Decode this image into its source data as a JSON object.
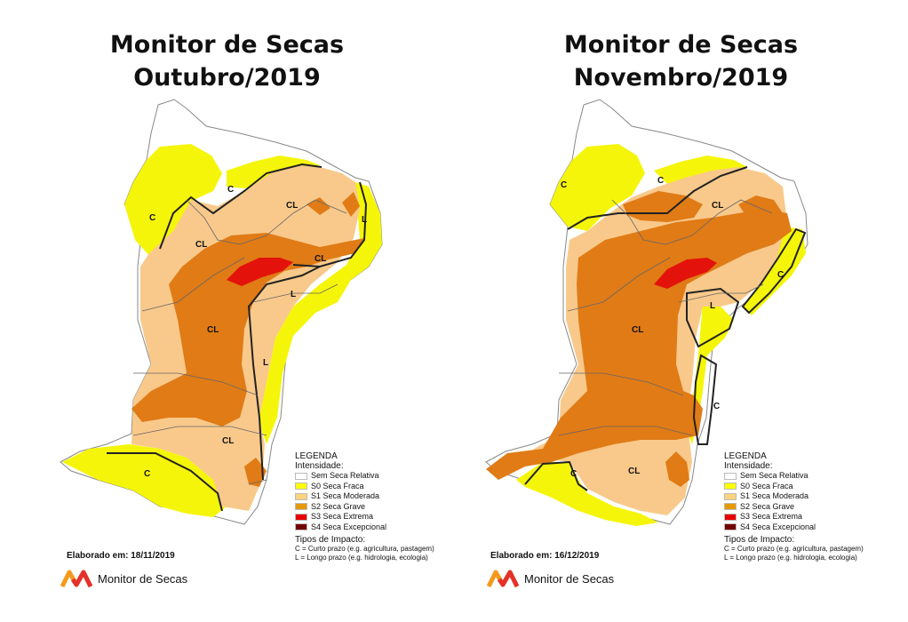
{
  "panels": [
    {
      "title_line1": "Monitor de Secas",
      "title_line2": "Outubro/2019",
      "date": "Elaborado em: 18/11/2019",
      "labels": [
        "C",
        "CL",
        "C",
        "CL",
        "L",
        "CL",
        "CL",
        "L",
        "L",
        "CL",
        "C"
      ]
    },
    {
      "title_line1": "Monitor de Secas",
      "title_line2": "Novembro/2019",
      "date": "Elaborado em: 16/12/2019",
      "labels": [
        "C",
        "C",
        "CL",
        "CL",
        "C",
        "L",
        "C",
        "CL",
        "C"
      ]
    }
  ],
  "legend": {
    "title": "LEGENDA",
    "intensity_label": "Intensidade:",
    "items": [
      {
        "label": "Sem Seca Relativa",
        "color": "#ffffff"
      },
      {
        "label": "S0 Seca Fraca",
        "color": "#ffff00"
      },
      {
        "label": "S1 Seca Moderada",
        "color": "#fcd37f"
      },
      {
        "label": "S2 Seca Grave",
        "color": "#e69800"
      },
      {
        "label": "S3 Seca Extrema",
        "color": "#e60000"
      },
      {
        "label": "S4 Seca Excepcional",
        "color": "#730000"
      }
    ],
    "impact_title": "Tipos de Impacto:",
    "impact_c": "C = Curto prazo (e.g. agricultura, pastagem)",
    "impact_l": "L = Longo prazo (e.g. hidrologia, ecologia)"
  },
  "brand": {
    "name": "Monitor de Secas",
    "icon": "monitor-de-secas-logo-icon"
  },
  "colors": {
    "s0": "#f5f50a",
    "s1": "#f9c98b",
    "s2": "#e07b16",
    "s3": "#e3120b",
    "s4": "#730000",
    "border": "#222222"
  }
}
